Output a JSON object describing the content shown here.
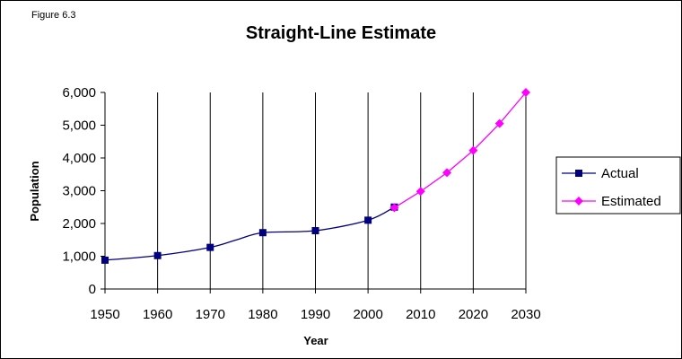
{
  "figure_label": "Figure 6.3",
  "chart_data": {
    "type": "line",
    "title": "Straight-Line Estimate",
    "xlabel": "Year",
    "ylabel": "Population",
    "xlim": [
      1950,
      2030
    ],
    "ylim": [
      0,
      6000
    ],
    "x_ticks": [
      1950,
      1960,
      1970,
      1980,
      1990,
      2000,
      2010,
      2020,
      2030
    ],
    "x_tick_labels": [
      "1950",
      "1960",
      "1970",
      "1980",
      "1990",
      "2000",
      "2010",
      "2020",
      "2030"
    ],
    "y_ticks": [
      0,
      1000,
      2000,
      3000,
      4000,
      5000,
      6000
    ],
    "y_tick_labels": [
      "0",
      "1,000",
      "2,000",
      "3,000",
      "4,000",
      "5,000",
      "6,000"
    ],
    "grid": "vertical",
    "legend_position": "right",
    "series": [
      {
        "name": "Actual",
        "color": "#000080",
        "marker": "square",
        "smooth": true,
        "x": [
          1950,
          1960,
          1970,
          1975,
          1980,
          1990,
          2000,
          2005
        ],
        "y": [
          880,
          1020,
          1270,
          1500,
          1720,
          1780,
          2100,
          2500
        ],
        "marked": [
          true,
          true,
          true,
          false,
          true,
          true,
          true,
          true
        ]
      },
      {
        "name": "Estimated",
        "color": "#FF00FF",
        "marker": "diamond",
        "smooth": false,
        "x": [
          2005,
          2010,
          2015,
          2020,
          2025,
          2030
        ],
        "y": [
          2480,
          2980,
          3550,
          4230,
          5050,
          6000
        ],
        "marked": [
          true,
          true,
          true,
          true,
          true,
          true
        ]
      }
    ]
  }
}
